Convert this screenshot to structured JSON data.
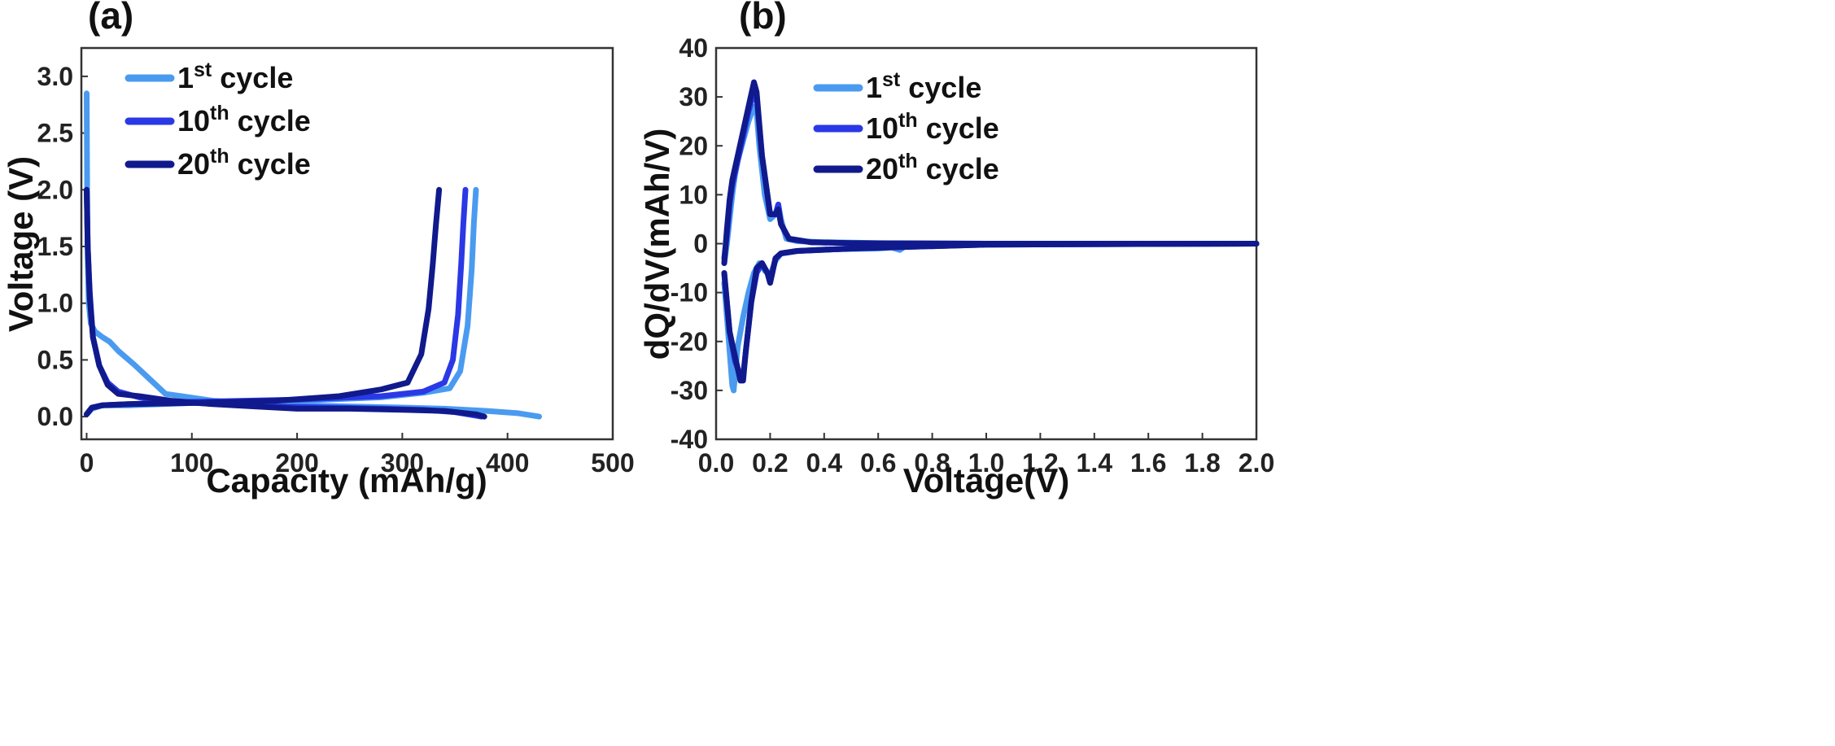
{
  "panel_a_label": "(a)",
  "panel_b_label": "(b)",
  "chart_data": [
    {
      "type": "line",
      "xlabel": "Capacity (mAh/g)",
      "ylabel": "Voltage (V)",
      "xlim": [
        -5,
        500
      ],
      "ylim": [
        -0.2,
        3.25
      ],
      "x_ticks": [
        0,
        100,
        200,
        300,
        400,
        500
      ],
      "x_tick_labels": [
        "0",
        "100",
        "200",
        "300",
        "400",
        "500"
      ],
      "y_ticks": [
        0.0,
        0.5,
        1.0,
        1.5,
        2.0,
        2.5,
        3.0
      ],
      "y_tick_labels": [
        "0.0",
        "0.5",
        "1.0",
        "1.5",
        "2.0",
        "2.5",
        "3.0"
      ],
      "grid": false,
      "legend_position": "top-left",
      "series": [
        {
          "name": "1st cycle",
          "name_base": "1",
          "name_sup": "st",
          "name_suffix": " cycle",
          "color": "#4a9bf0",
          "segments": [
            {
              "x": [
                0,
                0.5,
                1,
                2,
                4,
                8,
                15,
                22,
                30,
                45,
                60,
                75,
                90,
                120,
                160,
                200,
                250,
                300,
                340,
                380,
                410,
                430
              ],
              "y": [
                2.85,
                2.0,
                1.4,
                1.0,
                0.82,
                0.75,
                0.7,
                0.66,
                0.58,
                0.46,
                0.33,
                0.2,
                0.18,
                0.14,
                0.12,
                0.1,
                0.09,
                0.08,
                0.07,
                0.05,
                0.03,
                0.0
              ]
            },
            {
              "x": [
                0,
                5,
                15,
                40,
                100,
                200,
                280,
                320,
                345,
                355,
                362,
                366,
                368,
                370
              ],
              "y": [
                0.02,
                0.07,
                0.1,
                0.1,
                0.12,
                0.14,
                0.17,
                0.21,
                0.25,
                0.4,
                0.8,
                1.3,
                1.7,
                2.0
              ]
            }
          ]
        },
        {
          "name": "10th cycle",
          "name_base": "10",
          "name_sup": "th",
          "name_suffix": " cycle",
          "color": "#2a38e6",
          "segments": [
            {
              "x": [
                0,
                1,
                3,
                6,
                12,
                20,
                30,
                50,
                80,
                130,
                180,
                230,
                280,
                320,
                350,
                375
              ],
              "y": [
                2.0,
                1.5,
                1.1,
                0.7,
                0.45,
                0.3,
                0.22,
                0.17,
                0.13,
                0.11,
                0.09,
                0.08,
                0.07,
                0.06,
                0.04,
                0.0
              ]
            },
            {
              "x": [
                0,
                5,
                15,
                40,
                100,
                200,
                280,
                320,
                340,
                348,
                353,
                356,
                358,
                360
              ],
              "y": [
                0.02,
                0.08,
                0.1,
                0.11,
                0.13,
                0.15,
                0.18,
                0.22,
                0.3,
                0.5,
                0.9,
                1.35,
                1.7,
                2.0
              ]
            }
          ]
        },
        {
          "name": "20th cycle",
          "name_base": "20",
          "name_sup": "th",
          "name_suffix": " cycle",
          "color": "#101a8c",
          "segments": [
            {
              "x": [
                0,
                1,
                3,
                6,
                12,
                20,
                30,
                50,
                80,
                120,
                160,
                200,
                250,
                300,
                340,
                370,
                378
              ],
              "y": [
                2.0,
                1.5,
                1.05,
                0.7,
                0.45,
                0.28,
                0.2,
                0.18,
                0.14,
                0.11,
                0.09,
                0.07,
                0.07,
                0.06,
                0.05,
                0.02,
                0.0
              ]
            },
            {
              "x": [
                0,
                5,
                15,
                40,
                100,
                180,
                240,
                280,
                305,
                318,
                325,
                329,
                332,
                335
              ],
              "y": [
                0.02,
                0.08,
                0.1,
                0.11,
                0.12,
                0.14,
                0.18,
                0.24,
                0.3,
                0.55,
                0.95,
                1.35,
                1.7,
                2.0
              ]
            }
          ]
        }
      ]
    },
    {
      "type": "line",
      "xlabel": "Voltage(V)",
      "ylabel": "dQ/dV(mAh/V)",
      "xlim": [
        0.0,
        2.0
      ],
      "ylim": [
        -40,
        40
      ],
      "x_ticks": [
        0.0,
        0.2,
        0.4,
        0.6,
        0.8,
        1.0,
        1.2,
        1.4,
        1.6,
        1.8,
        2.0
      ],
      "x_tick_labels": [
        "0.0",
        "0.2",
        "0.4",
        "0.6",
        "0.8",
        "1.0",
        "1.2",
        "1.4",
        "1.6",
        "1.8",
        "2.0"
      ],
      "y_ticks": [
        -40,
        -30,
        -20,
        -10,
        0,
        10,
        20,
        30,
        40
      ],
      "y_tick_labels": [
        "-40",
        "-30",
        "-20",
        "-10",
        "0",
        "10",
        "20",
        "30",
        "40"
      ],
      "grid": false,
      "legend_position": "top-right",
      "series": [
        {
          "name": "1st cycle",
          "name_base": "1",
          "name_sup": "st",
          "name_suffix": " cycle",
          "color": "#4a9bf0",
          "segments": [
            {
              "x": [
                0.03,
                0.04,
                0.05,
                0.06,
                0.07,
                0.08,
                0.1,
                0.12,
                0.14,
                0.15,
                0.16,
                0.18,
                0.2,
                0.22,
                0.23,
                0.24,
                0.26,
                0.3,
                0.4,
                0.5,
                0.6,
                0.8,
                1.0,
                1.5,
                2.0
              ],
              "y": [
                -4,
                0,
                5,
                10,
                14,
                17,
                21,
                25,
                28,
                27,
                20,
                10,
                5,
                6,
                8,
                5,
                1,
                0.5,
                0.3,
                0.2,
                0.1,
                0.0,
                0.0,
                0.0,
                0.0
              ]
            },
            {
              "x": [
                0.03,
                0.04,
                0.05,
                0.06,
                0.065,
                0.07,
                0.08,
                0.1,
                0.12,
                0.14,
                0.15,
                0.16,
                0.17,
                0.18,
                0.2,
                0.21,
                0.22,
                0.24,
                0.3,
                0.4,
                0.6,
                0.65,
                0.68,
                0.7,
                0.8,
                1.0,
                1.5,
                2.0
              ],
              "y": [
                -8,
                -15,
                -22,
                -29,
                -30,
                -27,
                -21,
                -15,
                -10,
                -6,
                -5,
                -4,
                -4.5,
                -5.5,
                -6.5,
                -5,
                -3.5,
                -2,
                -1.5,
                -1.2,
                -1.0,
                -0.8,
                -1.3,
                -0.5,
                -0.2,
                0.0,
                0.0,
                0.0
              ]
            }
          ]
        },
        {
          "name": "10th cycle",
          "name_base": "10",
          "name_sup": "th",
          "name_suffix": " cycle",
          "color": "#2a38e6",
          "segments": [
            {
              "x": [
                0.03,
                0.04,
                0.05,
                0.06,
                0.08,
                0.1,
                0.12,
                0.14,
                0.15,
                0.17,
                0.2,
                0.22,
                0.23,
                0.24,
                0.27,
                0.35,
                0.5,
                1.0,
                2.0
              ],
              "y": [
                -3,
                2,
                8,
                12,
                17,
                22,
                27,
                31,
                30,
                18,
                6,
                6,
                8,
                4,
                1,
                0.3,
                0.1,
                0.0,
                0.0
              ]
            },
            {
              "x": [
                0.03,
                0.04,
                0.05,
                0.07,
                0.09,
                0.1,
                0.11,
                0.13,
                0.15,
                0.17,
                0.19,
                0.2,
                0.22,
                0.24,
                0.3,
                0.5,
                1.0,
                2.0
              ],
              "y": [
                -6,
                -12,
                -18,
                -24,
                -27,
                -27,
                -22,
                -12,
                -6,
                -4,
                -6,
                -8,
                -3,
                -2,
                -1.5,
                -1.0,
                -0.2,
                0.0
              ]
            }
          ]
        },
        {
          "name": "20th cycle",
          "name_base": "20",
          "name_sup": "th",
          "name_suffix": " cycle",
          "color": "#101a8c",
          "segments": [
            {
              "x": [
                0.03,
                0.04,
                0.05,
                0.06,
                0.08,
                0.1,
                0.12,
                0.14,
                0.15,
                0.17,
                0.2,
                0.22,
                0.23,
                0.24,
                0.27,
                0.35,
                0.5,
                1.0,
                2.0
              ],
              "y": [
                -4,
                3,
                9,
                13,
                18,
                23,
                28,
                33,
                31,
                18,
                6,
                6,
                7,
                4,
                1,
                0.3,
                0.1,
                0.0,
                0.0
              ]
            },
            {
              "x": [
                0.03,
                0.04,
                0.05,
                0.07,
                0.09,
                0.1,
                0.11,
                0.13,
                0.15,
                0.17,
                0.19,
                0.2,
                0.22,
                0.24,
                0.3,
                0.5,
                1.0,
                2.0
              ],
              "y": [
                -6,
                -12,
                -18,
                -23,
                -28,
                -28,
                -22,
                -12,
                -5,
                -4,
                -6,
                -8,
                -3,
                -2,
                -1.5,
                -1.0,
                -0.2,
                0.0
              ]
            }
          ]
        }
      ]
    }
  ]
}
